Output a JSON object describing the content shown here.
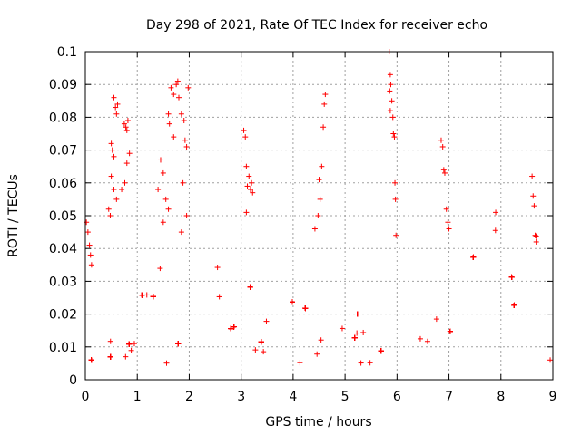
{
  "chart_data": {
    "type": "scatter",
    "title": "Day 298 of 2021, Rate Of TEC Index for receiver echo",
    "xlabel": "GPS time / hours",
    "ylabel": "ROTI / TECUs",
    "xlim": [
      0,
      9
    ],
    "ylim": [
      0,
      0.1
    ],
    "xticks": [
      "0",
      "1",
      "2",
      "3",
      "4",
      "5",
      "6",
      "7",
      "8",
      "9"
    ],
    "yticks": [
      "0",
      "0.01",
      "0.02",
      "0.03",
      "0.04",
      "0.05",
      "0.06",
      "0.07",
      "0.08",
      "0.09",
      "0.1"
    ],
    "grid": true,
    "marker": "plus",
    "color": "#ff0000",
    "series": [
      {
        "points": [
          [
            0.02,
            0.048
          ],
          [
            0.05,
            0.045
          ],
          [
            0.08,
            0.041
          ],
          [
            0.1,
            0.038
          ],
          [
            0.12,
            0.035
          ],
          [
            0.55,
            0.086
          ],
          [
            0.58,
            0.083
          ],
          [
            0.6,
            0.081
          ],
          [
            0.62,
            0.084
          ],
          [
            0.5,
            0.072
          ],
          [
            0.52,
            0.07
          ],
          [
            0.55,
            0.068
          ],
          [
            0.75,
            0.078
          ],
          [
            0.78,
            0.077
          ],
          [
            0.8,
            0.076
          ],
          [
            0.82,
            0.079
          ],
          [
            0.76,
            0.06
          ],
          [
            0.85,
            0.069
          ],
          [
            0.8,
            0.066
          ],
          [
            0.5,
            0.062
          ],
          [
            0.55,
            0.058
          ],
          [
            0.6,
            0.055
          ],
          [
            0.45,
            0.052
          ],
          [
            0.48,
            0.05
          ],
          [
            0.7,
            0.058
          ],
          [
            1.45,
            0.067
          ],
          [
            1.5,
            0.063
          ],
          [
            1.6,
            0.081
          ],
          [
            1.62,
            0.078
          ],
          [
            1.65,
            0.089
          ],
          [
            1.7,
            0.087
          ],
          [
            1.75,
            0.09
          ],
          [
            1.78,
            0.091
          ],
          [
            1.8,
            0.086
          ],
          [
            1.85,
            0.081
          ],
          [
            1.9,
            0.079
          ],
          [
            1.92,
            0.073
          ],
          [
            1.95,
            0.071
          ],
          [
            1.98,
            0.089
          ],
          [
            1.7,
            0.074
          ],
          [
            1.88,
            0.06
          ],
          [
            1.4,
            0.058
          ],
          [
            1.55,
            0.055
          ],
          [
            1.6,
            0.052
          ],
          [
            1.5,
            0.048
          ],
          [
            1.95,
            0.05
          ],
          [
            1.85,
            0.045
          ],
          [
            3.05,
            0.076
          ],
          [
            3.08,
            0.074
          ],
          [
            3.1,
            0.065
          ],
          [
            3.15,
            0.062
          ],
          [
            3.2,
            0.06
          ],
          [
            3.12,
            0.059
          ],
          [
            3.18,
            0.058
          ],
          [
            3.22,
            0.057
          ],
          [
            3.1,
            0.051
          ],
          [
            4.5,
            0.061
          ],
          [
            4.55,
            0.065
          ],
          [
            4.58,
            0.077
          ],
          [
            4.6,
            0.084
          ],
          [
            4.62,
            0.087
          ],
          [
            4.52,
            0.055
          ],
          [
            4.48,
            0.05
          ],
          [
            4.42,
            0.046
          ],
          [
            5.85,
            0.1
          ],
          [
            5.87,
            0.093
          ],
          [
            5.88,
            0.09
          ],
          [
            5.86,
            0.088
          ],
          [
            5.9,
            0.085
          ],
          [
            5.87,
            0.082
          ],
          [
            5.92,
            0.08
          ],
          [
            5.93,
            0.075
          ],
          [
            5.95,
            0.074
          ],
          [
            5.96,
            0.06
          ],
          [
            5.97,
            0.055
          ],
          [
            5.98,
            0.044
          ],
          [
            6.85,
            0.073
          ],
          [
            6.88,
            0.071
          ],
          [
            6.9,
            0.064
          ],
          [
            6.92,
            0.063
          ],
          [
            6.95,
            0.052
          ],
          [
            6.98,
            0.048
          ],
          [
            7.0,
            0.046
          ],
          [
            7.9,
            0.051
          ],
          [
            8.6,
            0.062
          ],
          [
            8.62,
            0.056
          ],
          [
            8.64,
            0.053
          ],
          [
            8.66,
            0.044
          ],
          [
            8.68,
            0.042
          ]
        ]
      }
    ]
  }
}
